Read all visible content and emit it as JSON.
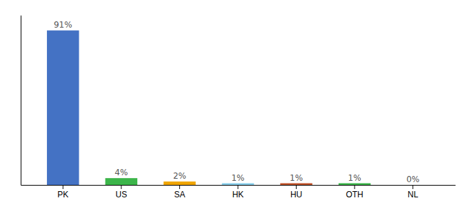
{
  "chart_data": {
    "type": "bar",
    "categories": [
      "PK",
      "US",
      "SA",
      "HK",
      "HU",
      "OTH",
      "NL"
    ],
    "values": [
      91,
      4,
      2,
      1,
      1,
      1,
      0
    ],
    "value_labels": [
      "91%",
      "4%",
      "2%",
      "1%",
      "1%",
      "1%",
      "0%"
    ],
    "colors": [
      "#4472c4",
      "#3cb54a",
      "#f0a500",
      "#87ceeb",
      "#c0522a",
      "#3cb54a",
      "#cccccc"
    ],
    "ylim": [
      0,
      100
    ],
    "yticks": [],
    "data_labels": true,
    "tick_labels": "x",
    "grid": false
  }
}
